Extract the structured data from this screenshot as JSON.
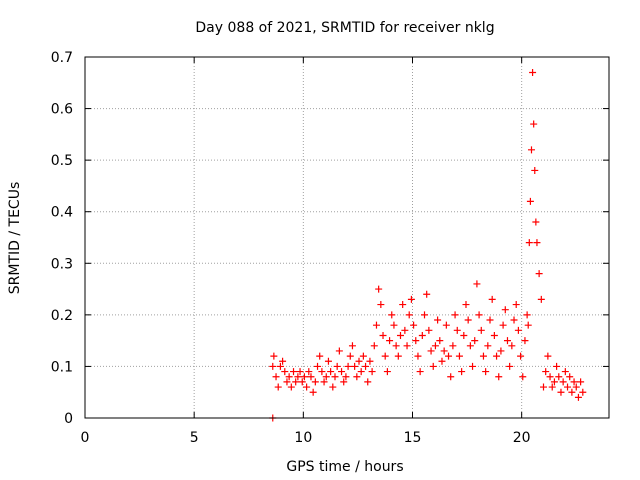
{
  "chart_data": {
    "type": "scatter",
    "title": "Day 088 of 2021, SRMTID for receiver nklg",
    "xlabel": "GPS time / hours",
    "ylabel": "SRMTID / TECUs",
    "xlim": [
      0,
      24
    ],
    "ylim": [
      0,
      0.7
    ],
    "xticks": [
      0,
      5,
      10,
      15,
      20
    ],
    "yticks": [
      0,
      0.1,
      0.2,
      0.3,
      0.4,
      0.5,
      0.6,
      0.7
    ],
    "xtick_labels": [
      "0",
      "5",
      "10",
      "15",
      "20"
    ],
    "ytick_labels": [
      "0",
      "0.1",
      "0.2",
      "0.3",
      "0.4",
      "0.5",
      "0.6",
      "0.7"
    ],
    "grid": true,
    "marker": "+",
    "series": [
      {
        "name": "SRMTID",
        "color": "#ff0000",
        "x": [
          8.6,
          8.6,
          8.65,
          8.75,
          8.85,
          8.95,
          9.05,
          9.15,
          9.25,
          9.35,
          9.45,
          9.55,
          9.65,
          9.75,
          9.85,
          9.95,
          10.05,
          10.15,
          10.25,
          10.35,
          10.45,
          10.55,
          10.65,
          10.75,
          10.85,
          10.95,
          11.05,
          11.15,
          11.25,
          11.35,
          11.45,
          11.55,
          11.65,
          11.75,
          11.85,
          11.95,
          12.05,
          12.15,
          12.25,
          12.35,
          12.45,
          12.55,
          12.65,
          12.75,
          12.85,
          12.95,
          13.05,
          13.15,
          13.25,
          13.35,
          13.45,
          13.55,
          13.65,
          13.75,
          13.85,
          13.95,
          14.05,
          14.15,
          14.25,
          14.35,
          14.45,
          14.55,
          14.65,
          14.75,
          14.85,
          14.95,
          15.05,
          15.15,
          15.25,
          15.35,
          15.45,
          15.55,
          15.65,
          15.75,
          15.85,
          15.95,
          16.05,
          16.15,
          16.25,
          16.35,
          16.45,
          16.55,
          16.65,
          16.75,
          16.85,
          16.95,
          17.05,
          17.15,
          17.25,
          17.35,
          17.45,
          17.55,
          17.65,
          17.75,
          17.85,
          17.95,
          18.05,
          18.15,
          18.25,
          18.35,
          18.45,
          18.55,
          18.65,
          18.75,
          18.85,
          18.95,
          19.05,
          19.15,
          19.25,
          19.35,
          19.45,
          19.55,
          19.65,
          19.75,
          19.85,
          19.95,
          20.05,
          20.15,
          20.25,
          20.3,
          20.35,
          20.4,
          20.45,
          20.5,
          20.55,
          20.6,
          20.65,
          20.7,
          20.8,
          20.9,
          21.0,
          21.1,
          21.2,
          21.3,
          21.4,
          21.5,
          21.6,
          21.7,
          21.8,
          21.9,
          22.0,
          22.1,
          22.2,
          22.3,
          22.4,
          22.5,
          22.6,
          22.7,
          22.8
        ],
        "y": [
          0.0,
          0.1,
          0.12,
          0.08,
          0.06,
          0.1,
          0.11,
          0.09,
          0.07,
          0.08,
          0.06,
          0.09,
          0.07,
          0.08,
          0.09,
          0.07,
          0.08,
          0.06,
          0.09,
          0.08,
          0.05,
          0.07,
          0.1,
          0.12,
          0.09,
          0.07,
          0.08,
          0.11,
          0.09,
          0.06,
          0.08,
          0.1,
          0.13,
          0.09,
          0.07,
          0.08,
          0.1,
          0.12,
          0.14,
          0.1,
          0.08,
          0.11,
          0.09,
          0.12,
          0.1,
          0.07,
          0.11,
          0.09,
          0.14,
          0.18,
          0.25,
          0.22,
          0.16,
          0.12,
          0.09,
          0.15,
          0.2,
          0.18,
          0.14,
          0.12,
          0.16,
          0.22,
          0.17,
          0.14,
          0.2,
          0.23,
          0.18,
          0.15,
          0.12,
          0.09,
          0.16,
          0.2,
          0.24,
          0.17,
          0.13,
          0.1,
          0.14,
          0.19,
          0.15,
          0.11,
          0.13,
          0.18,
          0.12,
          0.08,
          0.14,
          0.2,
          0.17,
          0.12,
          0.09,
          0.16,
          0.22,
          0.19,
          0.14,
          0.1,
          0.15,
          0.26,
          0.2,
          0.17,
          0.12,
          0.09,
          0.14,
          0.19,
          0.23,
          0.16,
          0.12,
          0.08,
          0.13,
          0.18,
          0.21,
          0.15,
          0.1,
          0.14,
          0.19,
          0.22,
          0.17,
          0.12,
          0.08,
          0.15,
          0.2,
          0.18,
          0.34,
          0.42,
          0.52,
          0.67,
          0.57,
          0.48,
          0.38,
          0.34,
          0.28,
          0.23,
          0.06,
          0.09,
          0.12,
          0.08,
          0.06,
          0.07,
          0.1,
          0.08,
          0.05,
          0.07,
          0.09,
          0.06,
          0.08,
          0.05,
          0.07,
          0.06,
          0.04,
          0.07,
          0.05
        ]
      }
    ]
  }
}
